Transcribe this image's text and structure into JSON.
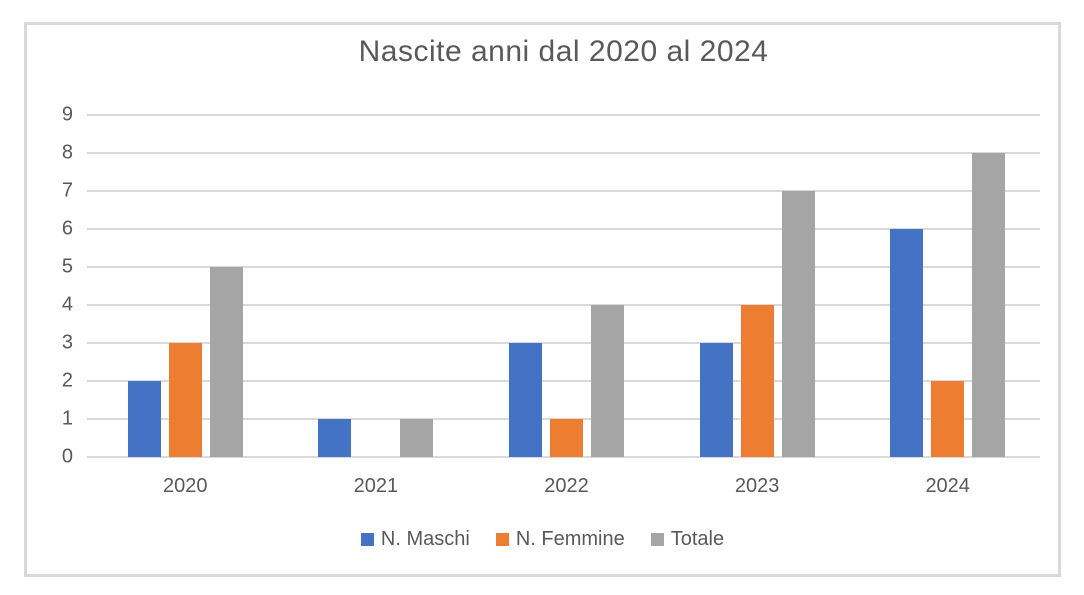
{
  "chart": {
    "title": "Nascite anni dal 2020 al 2024"
  },
  "chart_data": {
    "type": "bar",
    "title": "Nascite anni dal 2020 al 2024",
    "categories": [
      "2020",
      "2021",
      "2022",
      "2023",
      "2024"
    ],
    "series": [
      {
        "name": "N. Maschi",
        "color": "#4472C4",
        "values": [
          2,
          1,
          3,
          3,
          6
        ]
      },
      {
        "name": "N. Femmine",
        "color": "#ED7D31",
        "values": [
          3,
          0,
          1,
          4,
          2
        ]
      },
      {
        "name": "Totale",
        "color": "#A5A5A5",
        "values": [
          5,
          1,
          4,
          7,
          8
        ]
      }
    ],
    "xlabel": "",
    "ylabel": "",
    "ylim": [
      0,
      9
    ],
    "ytick_step": 1,
    "yticks": [
      0,
      1,
      2,
      3,
      4,
      5,
      6,
      7,
      8,
      9
    ],
    "grid": true,
    "legend_position": "bottom"
  },
  "colors": {
    "text": "#595959",
    "gridline": "#D9D9D9",
    "axis_line": "#D9D9D9",
    "frame_border": "#D9D9D9",
    "background": "#FFFFFF"
  }
}
